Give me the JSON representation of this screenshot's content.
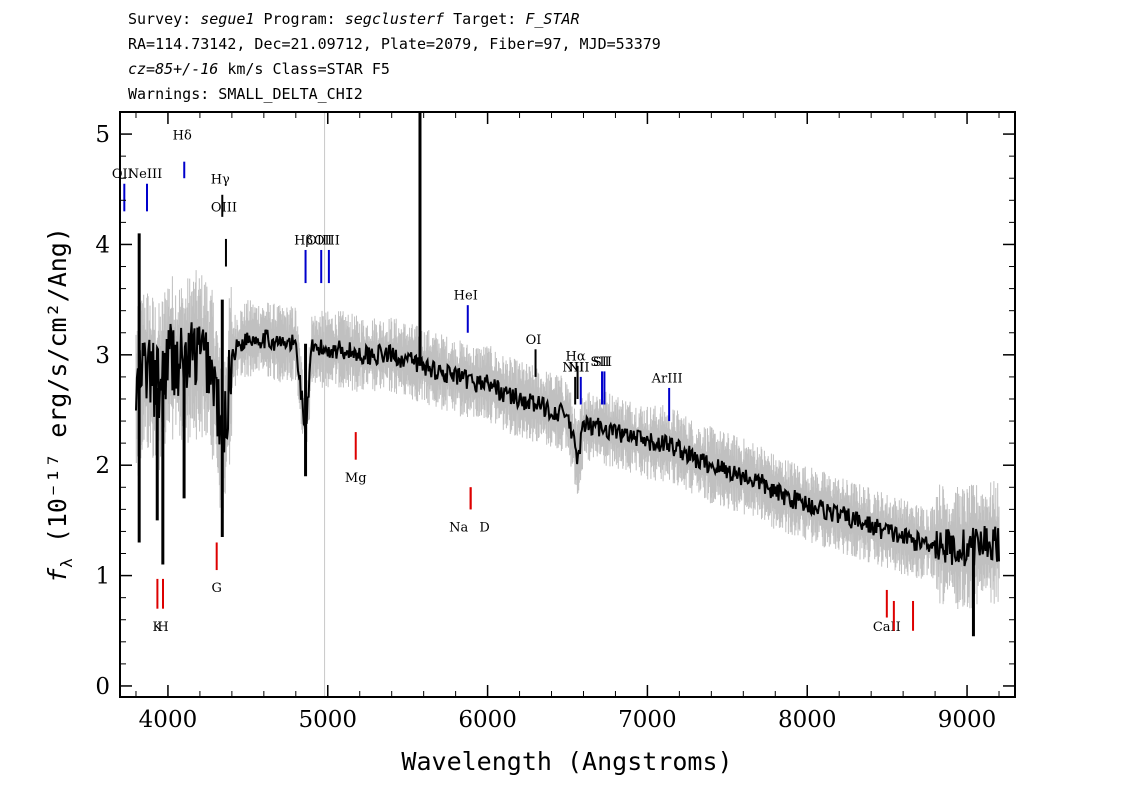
{
  "header": {
    "line1": {
      "survey_label": "Survey: ",
      "survey": "segue1",
      "program_label": " Program: ",
      "program": "segclusterf",
      "target_label": " Target: ",
      "target": "F_STAR"
    },
    "line2": "RA=114.73142, Dec=21.09712, Plate=2079, Fiber=97, MJD=53379",
    "line3": {
      "cz": "cz=85+/-16",
      "rest": " km/s Class=STAR F5"
    },
    "line4": "Warnings: SMALL_DELTA_CHI2"
  },
  "chart_data": {
    "type": "line",
    "xlabel": "Wavelength (Angstroms)",
    "ylabel_prefix": "f",
    "ylabel_sub": "λ",
    "ylabel_rest": " (10⁻¹⁷ erg/s/cm²/Ang)",
    "xlim": [
      3700,
      9300
    ],
    "ylim": [
      -0.1,
      5.2
    ],
    "x_ticks": [
      4000,
      5000,
      6000,
      7000,
      8000,
      9000
    ],
    "x_tick_labels": [
      "4000",
      "5000",
      "6000",
      "7000",
      "8000",
      "9000"
    ],
    "y_ticks": [
      0,
      1,
      2,
      3,
      4,
      5
    ],
    "y_tick_labels": [
      "0",
      "1",
      "2",
      "3",
      "4",
      "5"
    ],
    "series": [
      {
        "role": "flux",
        "color": "#000000",
        "points": [
          [
            3800,
            2.6
          ],
          [
            3850,
            2.9
          ],
          [
            3900,
            2.8
          ],
          [
            3950,
            2.7
          ],
          [
            4000,
            3.0
          ],
          [
            4050,
            2.95
          ],
          [
            4100,
            2.9
          ],
          [
            4150,
            3.0
          ],
          [
            4200,
            3.0
          ],
          [
            4250,
            2.95
          ],
          [
            4300,
            2.7
          ],
          [
            4340,
            2.1
          ],
          [
            4400,
            3.0
          ],
          [
            4450,
            3.1
          ],
          [
            4500,
            3.15
          ],
          [
            4600,
            3.15
          ],
          [
            4700,
            3.1
          ],
          [
            4800,
            3.1
          ],
          [
            4861,
            2.3
          ],
          [
            4900,
            3.05
          ],
          [
            5000,
            3.05
          ],
          [
            5100,
            3.05
          ],
          [
            5200,
            3.0
          ],
          [
            5300,
            3.0
          ],
          [
            5400,
            3.0
          ],
          [
            5500,
            2.95
          ],
          [
            5600,
            2.9
          ],
          [
            5700,
            2.85
          ],
          [
            5800,
            2.8
          ],
          [
            5900,
            2.75
          ],
          [
            6000,
            2.75
          ],
          [
            6100,
            2.65
          ],
          [
            6200,
            2.6
          ],
          [
            6300,
            2.55
          ],
          [
            6400,
            2.5
          ],
          [
            6500,
            2.45
          ],
          [
            6563,
            2.05
          ],
          [
            6600,
            2.35
          ],
          [
            6700,
            2.35
          ],
          [
            6800,
            2.3
          ],
          [
            6900,
            2.25
          ],
          [
            7000,
            2.2
          ],
          [
            7100,
            2.2
          ],
          [
            7200,
            2.15
          ],
          [
            7300,
            2.05
          ],
          [
            7400,
            2.0
          ],
          [
            7500,
            1.95
          ],
          [
            7600,
            1.9
          ],
          [
            7700,
            1.85
          ],
          [
            7800,
            1.75
          ],
          [
            7900,
            1.7
          ],
          [
            8000,
            1.65
          ],
          [
            8100,
            1.6
          ],
          [
            8200,
            1.55
          ],
          [
            8300,
            1.5
          ],
          [
            8400,
            1.45
          ],
          [
            8500,
            1.4
          ],
          [
            8600,
            1.35
          ],
          [
            8700,
            1.3
          ],
          [
            8800,
            1.3
          ],
          [
            8900,
            1.25
          ],
          [
            9000,
            1.25
          ],
          [
            9100,
            1.3
          ],
          [
            9200,
            1.3
          ]
        ]
      },
      {
        "role": "noise band",
        "color": "#c0c0c0"
      }
    ],
    "spikes": [
      {
        "x": 5577,
        "y_from": 2.9,
        "y_to": 5.2,
        "color": "#000000"
      },
      {
        "x": 3820,
        "y_from": 1.3,
        "y_to": 4.1,
        "color": "#000000"
      },
      {
        "x": 3933,
        "y_from": 1.5,
        "y_to": 2.7,
        "color": "#000000"
      },
      {
        "x": 3968,
        "y_from": 1.1,
        "y_to": 2.8,
        "color": "#000000"
      },
      {
        "x": 4101,
        "y_from": 1.7,
        "y_to": 2.9,
        "color": "#000000"
      },
      {
        "x": 4340,
        "y_from": 1.35,
        "y_to": 3.5,
        "color": "#000000"
      },
      {
        "x": 4861,
        "y_from": 1.9,
        "y_to": 3.1,
        "color": "#000000"
      },
      {
        "x": 9040,
        "y_from": 0.45,
        "y_to": 1.3,
        "color": "#000000"
      }
    ],
    "vertical_line": {
      "x": 4980,
      "color": "#c8c8c8"
    },
    "emission_lines": [
      {
        "label": "Hδ",
        "x": 4102,
        "y_top": 4.75,
        "y_bottom": 4.6,
        "label_y": 4.95,
        "color": "#0000cc"
      },
      {
        "label": "NeIII",
        "x": 3869,
        "y_top": 4.55,
        "y_bottom": 4.3,
        "label_y": 4.6,
        "color": "#0000cc"
      },
      {
        "label": "OII",
        "x": 3727,
        "y_top": 4.55,
        "y_bottom": 4.3,
        "label_y": 4.6,
        "color": "#0000cc"
      },
      {
        "label": "Hγ",
        "x": 4340,
        "y_top": 4.45,
        "y_bottom": 4.25,
        "label_y": 4.55,
        "color": "#000000"
      },
      {
        "label": "OIII",
        "x": 4363,
        "y_top": 4.05,
        "y_bottom": 3.8,
        "label_y": 4.3,
        "color": "#000000"
      },
      {
        "label": "Hβ",
        "x": 4861,
        "y_top": 3.95,
        "y_bottom": 3.65,
        "label_y": 4.0,
        "color": "#0000cc"
      },
      {
        "label": "OIII",
        "x": 4959,
        "y_top": 3.95,
        "y_bottom": 3.65,
        "label_y": 4.0,
        "color": "#0000cc"
      },
      {
        "label": "OIII",
        "x": 5007,
        "y_top": 3.95,
        "y_bottom": 3.65,
        "label_y": 4.0,
        "color": "#0000cc"
      },
      {
        "label": "HeI",
        "x": 5876,
        "y_top": 3.45,
        "y_bottom": 3.2,
        "label_y": 3.5,
        "color": "#0000cc"
      },
      {
        "label": "OI",
        "x": 6300,
        "y_top": 3.05,
        "y_bottom": 2.8,
        "label_y": 3.1,
        "color": "#000000"
      },
      {
        "label": "NII",
        "x": 6548,
        "y_top": 2.8,
        "y_bottom": 2.55,
        "label_y": 2.85,
        "color": "#000000"
      },
      {
        "label": "Hα",
        "x": 6563,
        "y_top": 2.9,
        "y_bottom": 2.6,
        "label_y": 2.95,
        "color": "#000000"
      },
      {
        "label": "NII",
        "x": 6583,
        "y_top": 2.8,
        "y_bottom": 2.55,
        "label_y": 2.85,
        "color": "#0000cc"
      },
      {
        "label": "SII",
        "x": 6716,
        "y_top": 2.85,
        "y_bottom": 2.55,
        "label_y": 2.9,
        "color": "#0000cc"
      },
      {
        "label": "SII",
        "x": 6731,
        "y_top": 2.85,
        "y_bottom": 2.55,
        "label_y": 2.9,
        "color": "#0000cc"
      },
      {
        "label": "ArIII",
        "x": 7136,
        "y_top": 2.7,
        "y_bottom": 2.4,
        "label_y": 2.75,
        "color": "#0000cc"
      }
    ],
    "absorption_lines": [
      {
        "label": "K",
        "x": 3934,
        "y_top": 0.97,
        "y_bottom": 0.7,
        "label_y": 0.5,
        "color": "#dd0000"
      },
      {
        "label": "H",
        "x": 3969,
        "y_top": 0.97,
        "y_bottom": 0.7,
        "label_y": 0.5,
        "color": "#dd0000"
      },
      {
        "label": "G",
        "x": 4305,
        "y_top": 1.3,
        "y_bottom": 1.05,
        "label_y": 0.85,
        "color": "#dd0000"
      },
      {
        "label": "Mg",
        "x": 5175,
        "y_top": 2.3,
        "y_bottom": 2.05,
        "label_y": 1.85,
        "color": "#dd0000"
      },
      {
        "label": "Na",
        "x": 5894,
        "y_top": 1.8,
        "y_bottom": 1.6,
        "label_y": 1.4,
        "color": "#dd0000"
      },
      {
        "label": "D",
        "x": 5894,
        "y_top": 1.8,
        "y_bottom": 1.6,
        "label_y": 1.4,
        "color": "#dd0000"
      },
      {
        "label": "CaII",
        "x": 8498,
        "y_top": 0.87,
        "y_bottom": 0.62,
        "label_y": 0.5,
        "color": "#dd0000"
      },
      {
        "label": "",
        "x": 8542,
        "y_top": 0.77,
        "y_bottom": 0.5,
        "label_y": 0.5,
        "color": "#dd0000"
      },
      {
        "label": "",
        "x": 8662,
        "y_top": 0.77,
        "y_bottom": 0.5,
        "label_y": 0.5,
        "color": "#dd0000"
      }
    ]
  }
}
